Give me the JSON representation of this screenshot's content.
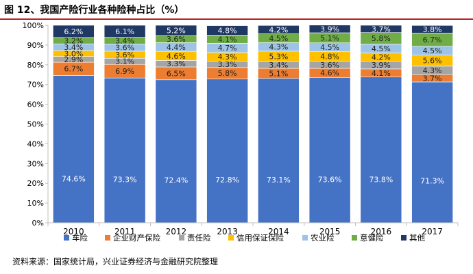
{
  "figure": {
    "title": "图 12、我国产险行业各种险种占比（%）",
    "source": "资料来源：国家统计局，兴业证券经济与金融研究院整理"
  },
  "chart_data": {
    "type": "bar",
    "stacked": true,
    "categories": [
      "2010",
      "2011",
      "2012",
      "2013",
      "2014",
      "2015",
      "2016",
      "2017"
    ],
    "series": [
      {
        "name": "车险",
        "color": "#4472c4",
        "values": [
          74.6,
          73.3,
          72.4,
          72.8,
          73.1,
          73.6,
          73.8,
          71.3
        ],
        "labels": [
          "74.6%",
          "73.3%",
          "72.4%",
          "72.8%",
          "73.1%",
          "73.6%",
          "73.8%",
          "71.3%"
        ]
      },
      {
        "name": "企业财产保险",
        "color": "#ed7d31",
        "values": [
          6.7,
          6.9,
          6.5,
          5.8,
          5.1,
          4.6,
          4.1,
          3.7
        ],
        "labels": [
          "6.7%",
          "6.9%",
          "6.5%",
          "5.8%",
          "5.1%",
          "4.6%",
          "4.1%",
          "3.7%"
        ]
      },
      {
        "name": "责任险",
        "color": "#a5a5a5",
        "values": [
          2.9,
          3.1,
          3.3,
          3.3,
          3.4,
          3.6,
          3.9,
          4.3
        ],
        "labels": [
          "2.9%",
          "3.1%",
          "3.3%",
          "3.3%",
          "3.4%",
          "3.6%",
          "3.9%",
          "4.3%"
        ]
      },
      {
        "name": "信用保证保险",
        "color": "#ffc000",
        "values": [
          3.0,
          3.6,
          4.6,
          4.3,
          5.3,
          4.8,
          4.2,
          5.6
        ],
        "labels": [
          "3.0%",
          "3.6%",
          "4.6%",
          "4.3%",
          "5.3%",
          "4.8%",
          "4.2%",
          "5.6%"
        ]
      },
      {
        "name": "农业险",
        "color": "#9dc3e6",
        "values": [
          3.4,
          3.6,
          4.4,
          4.7,
          4.3,
          4.5,
          4.5,
          4.5
        ],
        "labels": [
          "3.4%",
          "3.6%",
          "4.4%",
          "4.7%",
          "4.3%",
          "4.5%",
          "4.5%",
          "4.5%"
        ]
      },
      {
        "name": "意健险",
        "color": "#70ad47",
        "values": [
          3.2,
          3.4,
          3.6,
          4.1,
          4.5,
          5.1,
          5.8,
          6.7
        ],
        "labels": [
          "3.2%",
          "3.4%",
          "3.6%",
          "4.1%",
          "4.5%",
          "5.1%",
          "5.8%",
          "6.7%"
        ]
      },
      {
        "name": "其他",
        "color": "#203864",
        "values": [
          6.2,
          6.1,
          5.2,
          4.8,
          4.2,
          3.9,
          3.7,
          3.8
        ],
        "labels": [
          "6.2%",
          "6.1%",
          "5.2%",
          "4.8%",
          "4.2%",
          "3.9%",
          "3.7%",
          "3.8%"
        ]
      }
    ],
    "yticks": [
      "0%",
      "10%",
      "20%",
      "30%",
      "40%",
      "50%",
      "60%",
      "70%",
      "80%",
      "90%",
      "100%"
    ],
    "ylim": [
      0,
      100
    ],
    "grid": false,
    "legend_position": "bottom",
    "xlabel": "",
    "ylabel": ""
  }
}
